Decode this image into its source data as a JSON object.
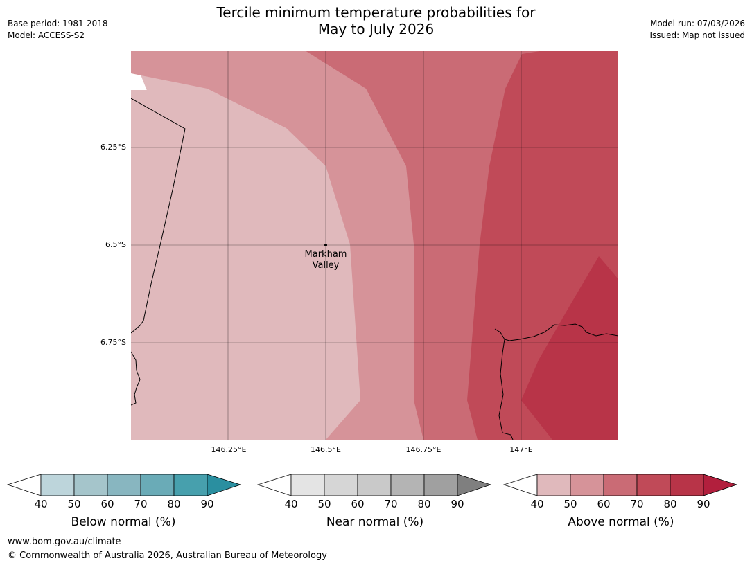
{
  "title": {
    "line1": "Tercile minimum temperature probabilities for",
    "line2": "May to July 2026"
  },
  "meta_left": {
    "base_period": "Base period: 1981-2018",
    "model": "Model: ACCESS-S2"
  },
  "meta_right": {
    "model_run": "Model run: 07/03/2026",
    "issued": "Issued: Map not issued"
  },
  "map": {
    "lat_labels": [
      "6.25°S",
      "6.5°S",
      "6.75°S"
    ],
    "lon_labels": [
      "146.25°E",
      "146.5°E",
      "146.75°E",
      "147°E"
    ],
    "place": {
      "line1": "Markham",
      "line2": "Valley"
    }
  },
  "legends": [
    {
      "title": "Below normal (%)",
      "ticks": [
        "40",
        "50",
        "60",
        "70",
        "80",
        "90"
      ],
      "colors": [
        "#bdd5db",
        "#a5c5cb",
        "#88b6c0",
        "#6aabb7",
        "#47a0ad",
        "#2a8fa0"
      ]
    },
    {
      "title": "Near normal (%)",
      "ticks": [
        "40",
        "50",
        "60",
        "70",
        "80",
        "90"
      ],
      "colors": [
        "#e4e4e4",
        "#d6d6d6",
        "#c9c9c9",
        "#b4b4b4",
        "#a0a0a0",
        "#7f7f7f"
      ]
    },
    {
      "title": "Above normal (%)",
      "ticks": [
        "40",
        "50",
        "60",
        "70",
        "80",
        "90"
      ],
      "colors": [
        "#e0b9bc",
        "#d69399",
        "#ca6b75",
        "#c04a58",
        "#b83448",
        "#b21f3d"
      ]
    }
  ],
  "map_colors": {
    "above_40_50": "#e0b9bc",
    "above_50_60": "#d69399",
    "above_60_70": "#ca6b75",
    "above_70_80": "#c04a58",
    "above_80_90": "#b83448",
    "near_40_50": "#e6e6e6"
  },
  "footer": {
    "url": "www.bom.gov.au/climate",
    "copyright": "© Commonwealth of Australia 2026, Australian Bureau of Meteorology"
  }
}
